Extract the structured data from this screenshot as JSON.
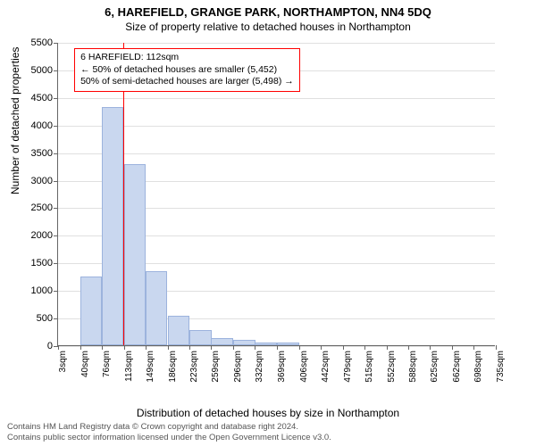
{
  "title_main": "6, HAREFIELD, GRANGE PARK, NORTHAMPTON, NN4 5DQ",
  "title_sub": "Size of property relative to detached houses in Northampton",
  "chart": {
    "type": "histogram",
    "y_axis_label": "Number of detached properties",
    "x_axis_label": "Distribution of detached houses by size in Northampton",
    "ylim": [
      0,
      5500
    ],
    "ytick_step": 500,
    "yticks": [
      0,
      500,
      1000,
      1500,
      2000,
      2500,
      3000,
      3500,
      4000,
      4500,
      5000,
      5500
    ],
    "x_min": 3,
    "x_max": 735,
    "xticks": [
      3,
      40,
      76,
      113,
      149,
      186,
      223,
      259,
      296,
      332,
      369,
      406,
      442,
      479,
      515,
      552,
      588,
      625,
      662,
      698,
      735
    ],
    "xticklabel_suffix": "sqm",
    "bar_color": "#c9d7ef",
    "bar_border_color": "#9cb3dd",
    "grid_color": "#e0e0e0",
    "axis_color": "#666666",
    "background_color": "#ffffff",
    "bar_bin_width": 36.6,
    "bars": [
      {
        "x_start": 3,
        "value": 0
      },
      {
        "x_start": 40,
        "value": 1250
      },
      {
        "x_start": 76,
        "value": 4320
      },
      {
        "x_start": 113,
        "value": 3280
      },
      {
        "x_start": 149,
        "value": 1350
      },
      {
        "x_start": 186,
        "value": 540
      },
      {
        "x_start": 223,
        "value": 280
      },
      {
        "x_start": 259,
        "value": 130
      },
      {
        "x_start": 296,
        "value": 90
      },
      {
        "x_start": 332,
        "value": 55
      },
      {
        "x_start": 369,
        "value": 55
      },
      {
        "x_start": 406,
        "value": 0
      },
      {
        "x_start": 442,
        "value": 0
      },
      {
        "x_start": 479,
        "value": 0
      },
      {
        "x_start": 515,
        "value": 0
      },
      {
        "x_start": 552,
        "value": 0
      },
      {
        "x_start": 588,
        "value": 0
      },
      {
        "x_start": 625,
        "value": 0
      },
      {
        "x_start": 662,
        "value": 0
      },
      {
        "x_start": 698,
        "value": 0
      }
    ],
    "marker": {
      "x_value": 112,
      "color": "#ff0000"
    },
    "annotation": {
      "border_color": "#ff0000",
      "bg_color": "#ffffff",
      "line1": "6 HAREFIELD: 112sqm",
      "line2": "← 50% of detached houses are smaller (5,452)",
      "line3": "50% of semi-detached houses are larger (5,498) →",
      "position_x_sqm": 30,
      "position_y_value": 5400
    }
  },
  "footer": {
    "line1": "Contains HM Land Registry data © Crown copyright and database right 2024.",
    "line2": "Contains public sector information licensed under the Open Government Licence v3.0."
  }
}
